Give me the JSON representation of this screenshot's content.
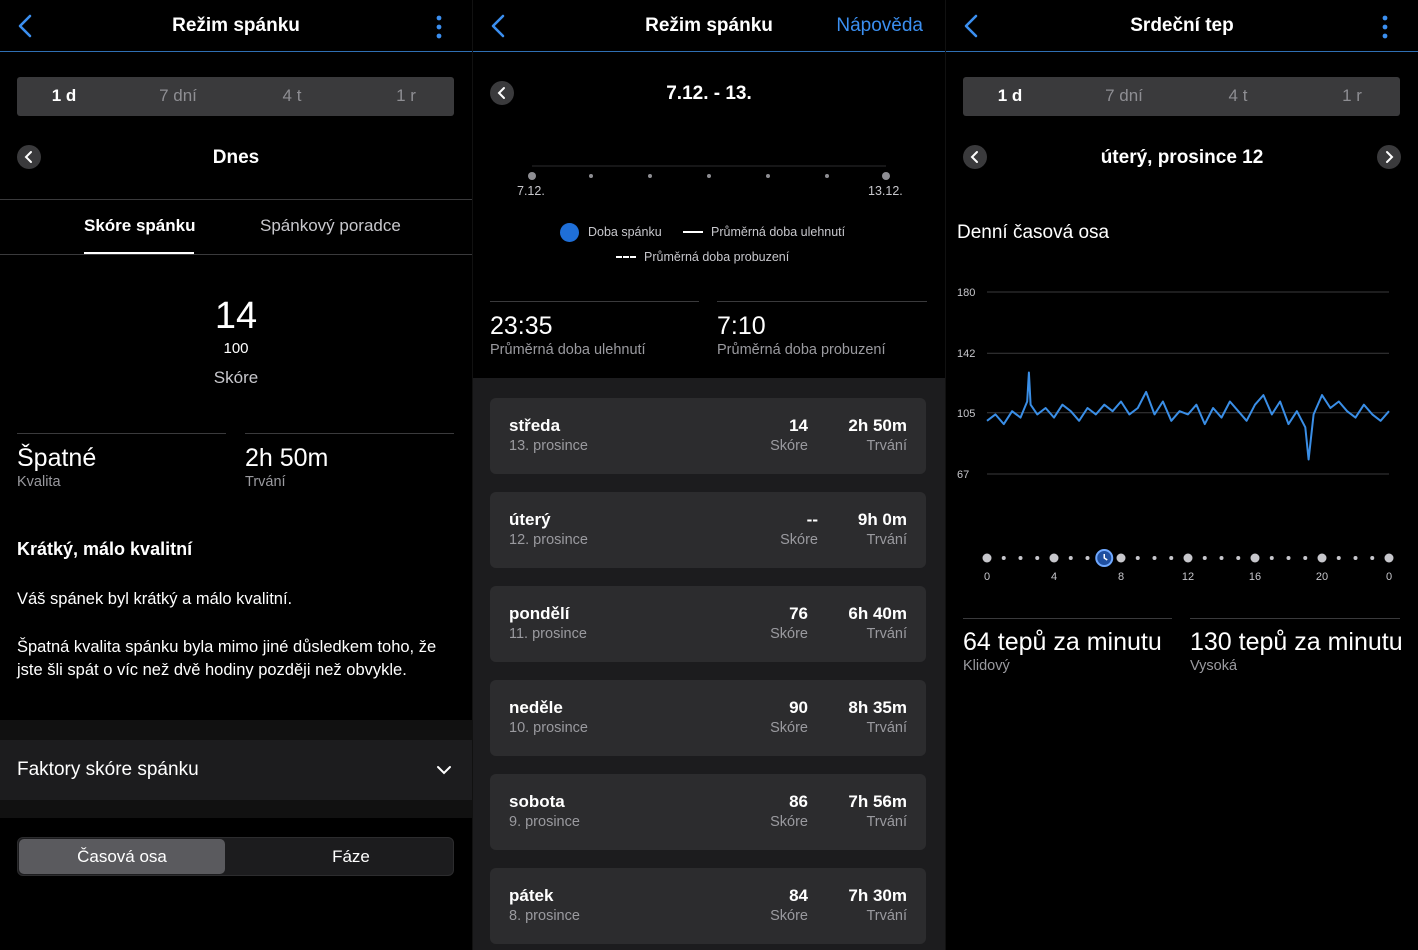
{
  "panel1": {
    "title": "Režim spánku",
    "periods": [
      "1 d",
      "7 dní",
      "4 t",
      "1 r"
    ],
    "date_label": "Dnes",
    "tabs": [
      "Skóre spánku",
      "Spánkový poradce"
    ],
    "score": "14",
    "score_max": "100",
    "score_label": "Skóre",
    "quality_value": "Špatné",
    "quality_label": "Kvalita",
    "duration_value": "2h 50m",
    "duration_label": "Trvání",
    "insight_title": "Krátký, málo kvalitní",
    "insight_p1": "Váš spánek byl krátký a málo kvalitní.",
    "insight_p2": "Špatná kvalita spánku byla mimo jiné důsledkem toho, že jste šli spát o víc než dvě hodiny později než obvykle.",
    "factors_label": "Faktory skóre spánku",
    "view_toggle": [
      "Časová osa",
      "Fáze"
    ]
  },
  "panel2": {
    "title": "Režim spánku",
    "help_label": "Nápověda",
    "date_range": "7.12. - 13.",
    "axis_start": "7.12.",
    "axis_end": "13.12.",
    "legend": {
      "sleep_duration": "Doba spánku",
      "avg_fall_asleep": "Průměrná doba ulehnutí",
      "avg_wake": "Průměrná doba probuzení"
    },
    "avg_bedtime_value": "23:35",
    "avg_bedtime_label": "Průměrná doba ulehnutí",
    "avg_wake_value": "7:10",
    "avg_wake_label": "Průměrná doba probuzení",
    "days": [
      {
        "day": "středa",
        "date": "13. prosince",
        "score": "14",
        "score_label": "Skóre",
        "duration": "2h 50m",
        "duration_label": "Trvání"
      },
      {
        "day": "úterý",
        "date": "12. prosince",
        "score": "--",
        "score_label": "Skóre",
        "duration": "9h 0m",
        "duration_label": "Trvání"
      },
      {
        "day": "pondělí",
        "date": "11. prosince",
        "score": "76",
        "score_label": "Skóre",
        "duration": "6h 40m",
        "duration_label": "Trvání"
      },
      {
        "day": "neděle",
        "date": "10. prosince",
        "score": "90",
        "score_label": "Skóre",
        "duration": "8h 35m",
        "duration_label": "Trvání"
      },
      {
        "day": "sobota",
        "date": "9. prosince",
        "score": "86",
        "score_label": "Skóre",
        "duration": "7h 56m",
        "duration_label": "Trvání"
      },
      {
        "day": "pátek",
        "date": "8. prosince",
        "score": "84",
        "score_label": "Skóre",
        "duration": "7h 30m",
        "duration_label": "Trvání"
      }
    ]
  },
  "panel3": {
    "title": "Srdeční tep",
    "periods": [
      "1 d",
      "7 dní",
      "4 t",
      "1 r"
    ],
    "date_label": "úterý, prosince 12",
    "chart_title": "Denní časová osa",
    "resting_value": "64 tepů za minutu",
    "resting_label": "Klidový",
    "high_value": "130 tepů za minutu",
    "high_label": "Vysoká"
  },
  "colors": {
    "accent": "#2f6fb3",
    "link": "#3b8ff0",
    "hr_line": "#3a8ee6",
    "sleep_dot": "#1f6fd8"
  },
  "chart_data": {
    "type": "line",
    "title": "Denní časová osa",
    "xlabel": "",
    "ylabel": "",
    "y_ticks": [
      67,
      105,
      142,
      180
    ],
    "x_ticks": [
      "0",
      "4",
      "8",
      "12",
      "16",
      "20",
      "0"
    ],
    "ylim": [
      67,
      180
    ],
    "xlim": [
      0,
      24
    ],
    "grid": true,
    "series": [
      {
        "x": [
          0,
          0.5,
          1,
          1.5,
          2,
          2.4,
          2.5,
          2.6,
          3,
          3.5,
          4,
          4.5,
          5,
          5.5,
          6,
          6.5,
          7,
          7.5,
          8,
          8.5,
          9,
          9.5,
          10,
          10.5,
          11,
          11.5,
          12,
          12.5,
          13,
          13.5,
          14,
          14.5,
          15,
          15.5,
          16,
          16.5,
          17,
          17.5,
          18,
          18.5,
          19,
          19.2,
          19.5,
          20,
          20.5,
          21,
          21.5,
          22,
          22.5,
          23,
          23.5,
          24
        ],
        "y": [
          100,
          104,
          98,
          106,
          102,
          112,
          130,
          110,
          104,
          108,
          102,
          110,
          106,
          100,
          108,
          104,
          110,
          106,
          112,
          104,
          108,
          118,
          104,
          112,
          100,
          106,
          104,
          110,
          98,
          108,
          102,
          112,
          106,
          100,
          110,
          116,
          104,
          112,
          98,
          106,
          96,
          76,
          104,
          116,
          108,
          112,
          106,
          102,
          110,
          104,
          100,
          106
        ]
      }
    ]
  }
}
